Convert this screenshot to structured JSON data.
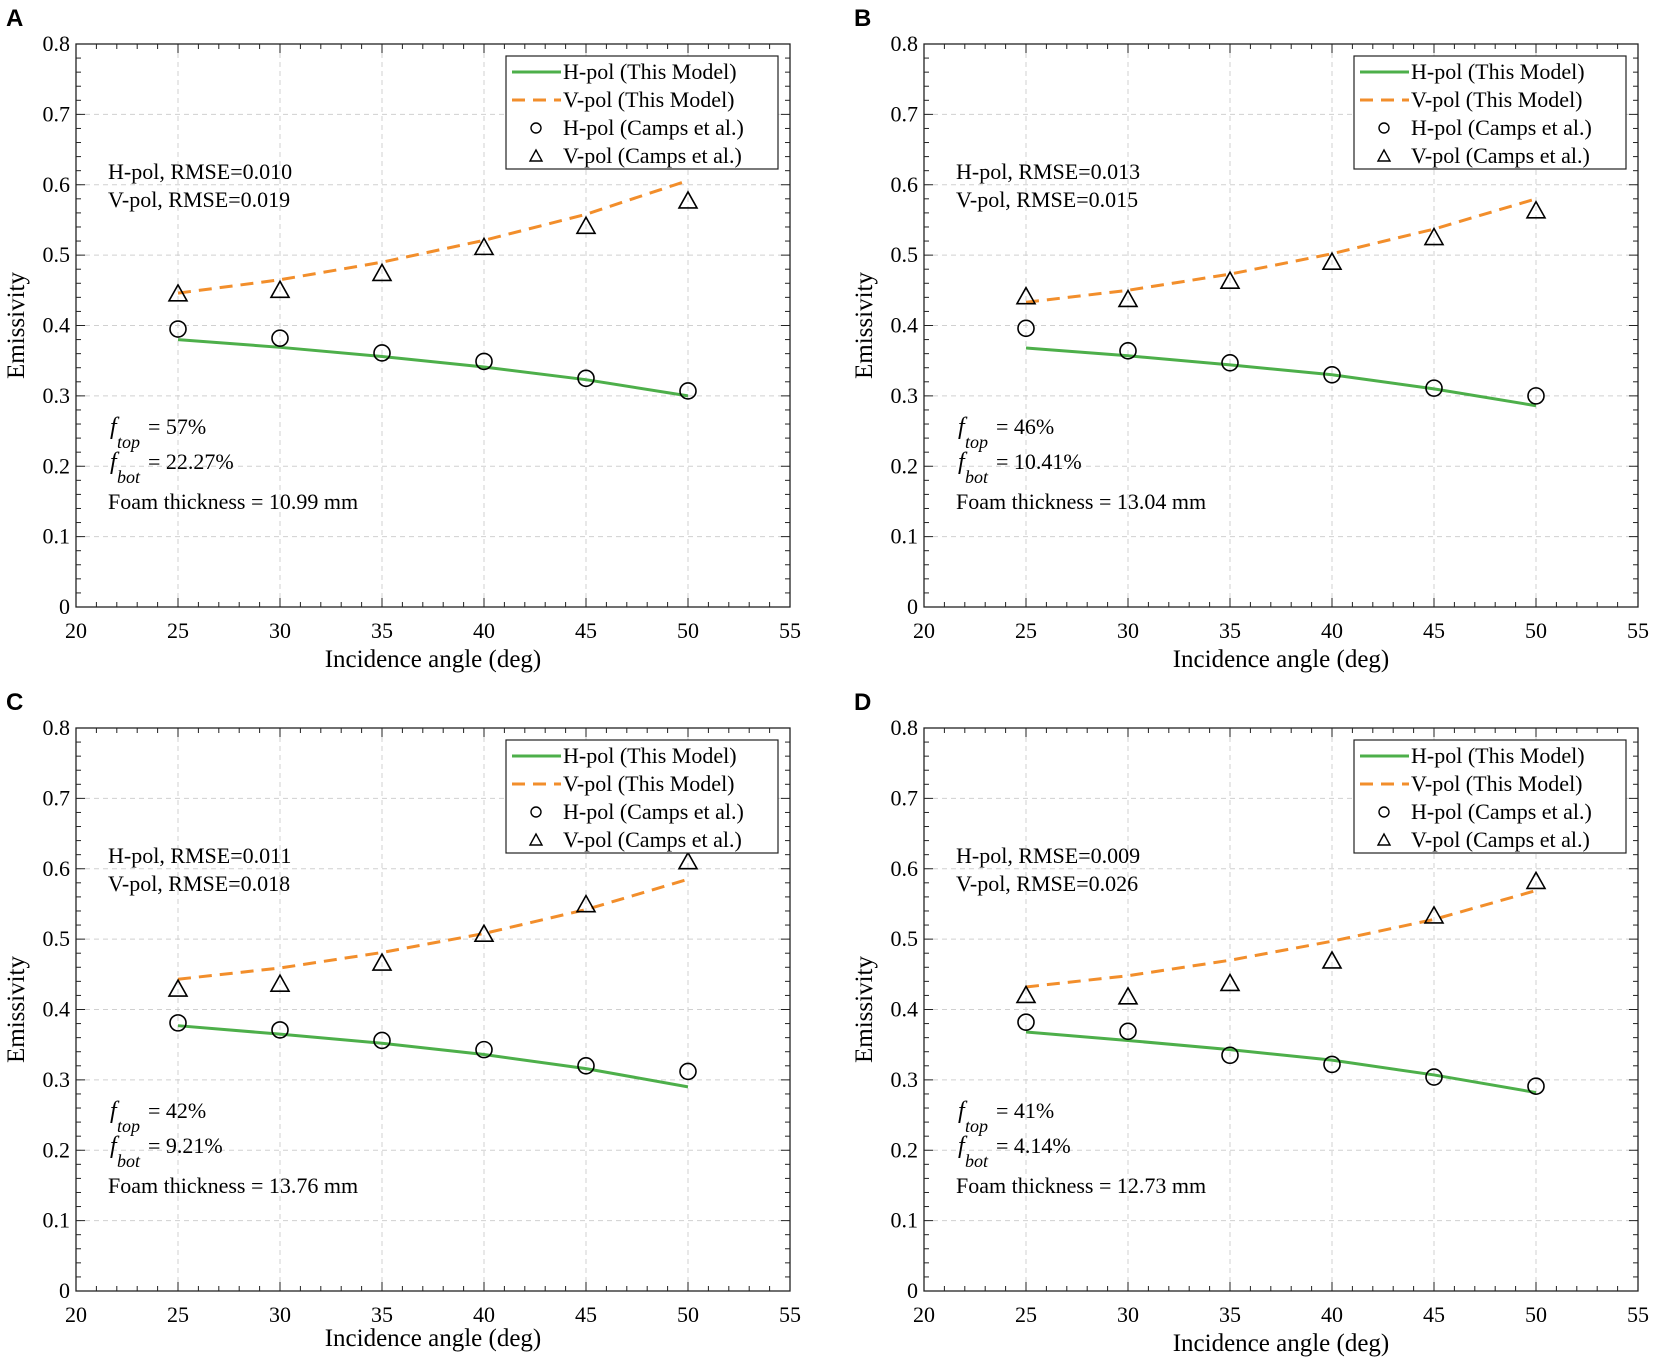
{
  "colors": {
    "h_model": "#4daf4a",
    "v_model": "#f28e2b",
    "markers": "#000000",
    "grid": "#d0d0d0"
  },
  "chart_data": [
    {
      "panel": "A",
      "type": "line",
      "xlabel": "Incidence angle (deg)",
      "ylabel": "Emissivity",
      "xlim": [
        20,
        55
      ],
      "ylim": [
        0,
        0.8
      ],
      "xticks": [
        "20",
        "25",
        "30",
        "35",
        "40",
        "45",
        "50",
        "55"
      ],
      "yticks": [
        "0",
        "0.1",
        "0.2",
        "0.3",
        "0.4",
        "0.5",
        "0.6",
        "0.7",
        "0.8"
      ],
      "grid": true,
      "legend_position": "top-right",
      "x": [
        25,
        30,
        35,
        40,
        45,
        50
      ],
      "series": [
        {
          "name": "H-pol (This Model)",
          "style": "solid-line",
          "values": [
            0.38,
            0.369,
            0.356,
            0.341,
            0.323,
            0.3
          ]
        },
        {
          "name": "V-pol (This Model)",
          "style": "dashed-line",
          "values": [
            0.446,
            0.465,
            0.49,
            0.521,
            0.558,
            0.606
          ]
        },
        {
          "name": "H-pol (Camps et al.)",
          "style": "circle",
          "values": [
            0.395,
            0.382,
            0.361,
            0.349,
            0.325,
            0.307
          ]
        },
        {
          "name": "V-pol (Camps et al.)",
          "style": "triangle",
          "values": [
            0.445,
            0.45,
            0.474,
            0.511,
            0.541,
            0.577
          ]
        }
      ],
      "annotations": {
        "rmse_h": "H-pol, RMSE=0.010",
        "rmse_v": "V-pol, RMSE=0.019",
        "f_top": "= 57%",
        "f_bot": "= 22.27%",
        "foam": "Foam thickness = 10.99 mm"
      }
    },
    {
      "panel": "B",
      "type": "line",
      "xlabel": "Incidence angle (deg)",
      "ylabel": "Emissivity",
      "xlim": [
        20,
        55
      ],
      "ylim": [
        0,
        0.8
      ],
      "xticks": [
        "20",
        "25",
        "30",
        "35",
        "40",
        "45",
        "50",
        "55"
      ],
      "yticks": [
        "0",
        "0.1",
        "0.2",
        "0.3",
        "0.4",
        "0.5",
        "0.6",
        "0.7",
        "0.8"
      ],
      "grid": true,
      "legend_position": "top-right",
      "x": [
        25,
        30,
        35,
        40,
        45,
        50
      ],
      "series": [
        {
          "name": "H-pol (This Model)",
          "style": "solid-line",
          "values": [
            0.368,
            0.357,
            0.344,
            0.33,
            0.31,
            0.286
          ]
        },
        {
          "name": "V-pol (This Model)",
          "style": "dashed-line",
          "values": [
            0.433,
            0.45,
            0.473,
            0.502,
            0.537,
            0.58
          ]
        },
        {
          "name": "H-pol (Camps et al.)",
          "style": "circle",
          "values": [
            0.396,
            0.364,
            0.347,
            0.33,
            0.311,
            0.3
          ]
        },
        {
          "name": "V-pol (Camps et al.)",
          "style": "triangle",
          "values": [
            0.441,
            0.437,
            0.463,
            0.49,
            0.525,
            0.563
          ]
        }
      ],
      "annotations": {
        "rmse_h": "H-pol, RMSE=0.013",
        "rmse_v": "V-pol, RMSE=0.015",
        "f_top": "= 46%",
        "f_bot": "= 10.41%",
        "foam": "Foam thickness = 13.04 mm"
      }
    },
    {
      "panel": "C",
      "type": "line",
      "xlabel": "Incidence angle (deg)",
      "ylabel": "Emissivity",
      "xlim": [
        20,
        55
      ],
      "ylim": [
        0,
        0.8
      ],
      "xticks": [
        "20",
        "25",
        "30",
        "35",
        "40",
        "45",
        "50",
        "55"
      ],
      "yticks": [
        "0",
        "0.1",
        "0.2",
        "0.3",
        "0.4",
        "0.5",
        "0.6",
        "0.7",
        "0.8"
      ],
      "grid": true,
      "legend_position": "top-right",
      "x": [
        25,
        30,
        35,
        40,
        45,
        50
      ],
      "series": [
        {
          "name": "H-pol (This Model)",
          "style": "solid-line",
          "values": [
            0.377,
            0.365,
            0.352,
            0.336,
            0.316,
            0.29
          ]
        },
        {
          "name": "V-pol (This Model)",
          "style": "dashed-line",
          "values": [
            0.443,
            0.459,
            0.481,
            0.508,
            0.542,
            0.585
          ]
        },
        {
          "name": "H-pol (Camps et al.)",
          "style": "circle",
          "values": [
            0.381,
            0.371,
            0.356,
            0.343,
            0.32,
            0.312
          ]
        },
        {
          "name": "V-pol (Camps et al.)",
          "style": "triangle",
          "values": [
            0.429,
            0.436,
            0.466,
            0.507,
            0.549,
            0.61
          ]
        }
      ],
      "annotations": {
        "rmse_h": "H-pol, RMSE=0.011",
        "rmse_v": "V-pol, RMSE=0.018",
        "f_top": "= 42%",
        "f_bot": "= 9.21%",
        "foam": "Foam thickness = 13.76 mm"
      }
    },
    {
      "panel": "D",
      "type": "line",
      "xlabel": "Incidence angle (deg)",
      "ylabel": "Emissivity",
      "xlim": [
        20,
        55
      ],
      "ylim": [
        0,
        0.8
      ],
      "xticks": [
        "20",
        "25",
        "30",
        "35",
        "40",
        "45",
        "50",
        "55"
      ],
      "yticks": [
        "0",
        "0.1",
        "0.2",
        "0.3",
        "0.4",
        "0.5",
        "0.6",
        "0.7",
        "0.8"
      ],
      "grid": true,
      "legend_position": "top-right",
      "x": [
        25,
        30,
        35,
        40,
        45,
        50
      ],
      "series": [
        {
          "name": "H-pol (This Model)",
          "style": "solid-line",
          "values": [
            0.368,
            0.356,
            0.343,
            0.328,
            0.307,
            0.282
          ]
        },
        {
          "name": "V-pol (This Model)",
          "style": "dashed-line",
          "values": [
            0.432,
            0.448,
            0.47,
            0.497,
            0.528,
            0.569
          ]
        },
        {
          "name": "H-pol (Camps et al.)",
          "style": "circle",
          "values": [
            0.382,
            0.369,
            0.335,
            0.322,
            0.304,
            0.291
          ]
        },
        {
          "name": "V-pol (Camps et al.)",
          "style": "triangle",
          "values": [
            0.42,
            0.418,
            0.437,
            0.469,
            0.533,
            0.582
          ]
        }
      ],
      "annotations": {
        "rmse_h": "H-pol, RMSE=0.009",
        "rmse_v": "V-pol, RMSE=0.026",
        "f_top": "= 41%",
        "f_bot": "= 4.14%",
        "foam": "Foam thickness = 12.73 mm"
      }
    }
  ],
  "symbols": {
    "f": "f",
    "top": "top",
    "bot": "bot"
  }
}
